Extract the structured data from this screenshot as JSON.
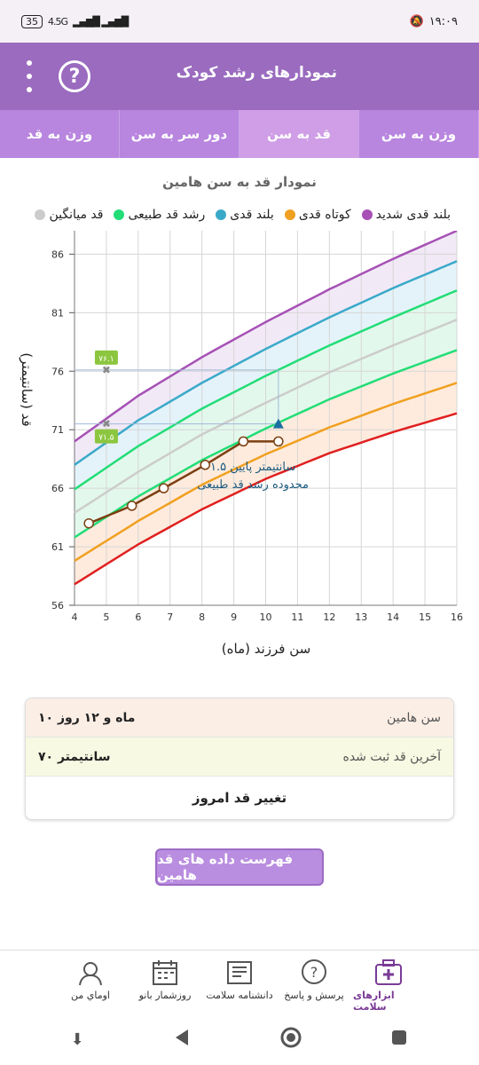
{
  "status": {
    "battery": "35",
    "network": "4.5G",
    "time": "۱۹:۰۹"
  },
  "appbar": {
    "title": "نمودارهای رشد کودک",
    "help_label": "?"
  },
  "tabs": [
    {
      "label": "وزن به سن",
      "active": false
    },
    {
      "label": "قد به سن",
      "active": true
    },
    {
      "label": "دور سر به سن",
      "active": false
    },
    {
      "label": "وزن به قد",
      "active": false
    }
  ],
  "chart_title": "نمودار قد به سن هامین",
  "legend": [
    {
      "label": "بلند قدی شدید",
      "color": "#a651b5"
    },
    {
      "label": "کوتاه قدی",
      "color": "#f0a020"
    },
    {
      "label": "بلند قدی",
      "color": "#3aa9c9"
    },
    {
      "label": "رشد قد طبیعی",
      "color": "#22dd77"
    },
    {
      "label": "قد میانگین",
      "color": "#cccccc"
    }
  ],
  "chart_data": {
    "type": "line",
    "xlabel": "سن فرزند (ماه)",
    "ylabel": "قد (سانتیمتر)",
    "xlim": [
      4,
      16
    ],
    "ylim": [
      56,
      88
    ],
    "xticks": [
      4,
      5,
      6,
      7,
      8,
      9,
      10,
      11,
      12,
      13,
      14,
      15,
      16
    ],
    "yticks": [
      56,
      61,
      66,
      71,
      76,
      81,
      86
    ],
    "curves": [
      {
        "name": "severe-short",
        "color": "#e02020",
        "points": [
          [
            4,
            57.8
          ],
          [
            6,
            61.2
          ],
          [
            8,
            64.2
          ],
          [
            10,
            66.8
          ],
          [
            12,
            69.0
          ],
          [
            14,
            70.8
          ],
          [
            16,
            72.4
          ]
        ]
      },
      {
        "name": "short",
        "color": "#f0a020",
        "points": [
          [
            4,
            59.8
          ],
          [
            6,
            63.2
          ],
          [
            8,
            66.3
          ],
          [
            10,
            68.9
          ],
          [
            12,
            71.2
          ],
          [
            14,
            73.2
          ],
          [
            16,
            75.0
          ]
        ]
      },
      {
        "name": "normal-low",
        "color": "#22dd77",
        "points": [
          [
            4,
            61.8
          ],
          [
            6,
            65.3
          ],
          [
            8,
            68.4
          ],
          [
            10,
            71.1
          ],
          [
            12,
            73.6
          ],
          [
            14,
            75.8
          ],
          [
            16,
            77.8
          ]
        ]
      },
      {
        "name": "mean",
        "color": "#cccccc",
        "points": [
          [
            4,
            63.9
          ],
          [
            6,
            67.4
          ],
          [
            8,
            70.6
          ],
          [
            10,
            73.3
          ],
          [
            12,
            75.9
          ],
          [
            14,
            78.2
          ],
          [
            16,
            80.4
          ]
        ]
      },
      {
        "name": "normal-high",
        "color": "#22dd77",
        "points": [
          [
            4,
            65.9
          ],
          [
            6,
            69.6
          ],
          [
            8,
            72.8
          ],
          [
            10,
            75.6
          ],
          [
            12,
            78.2
          ],
          [
            14,
            80.6
          ],
          [
            16,
            82.9
          ]
        ]
      },
      {
        "name": "tall",
        "color": "#3aa9c9",
        "points": [
          [
            4,
            68.0
          ],
          [
            6,
            71.8
          ],
          [
            8,
            75.0
          ],
          [
            10,
            77.9
          ],
          [
            12,
            80.6
          ],
          [
            14,
            83.1
          ],
          [
            16,
            85.4
          ]
        ]
      },
      {
        "name": "very-tall",
        "color": "#a651b5",
        "points": [
          [
            4,
            70.0
          ],
          [
            6,
            73.9
          ],
          [
            8,
            77.2
          ],
          [
            10,
            80.2
          ],
          [
            12,
            83.0
          ],
          [
            14,
            85.6
          ],
          [
            16,
            88.0
          ]
        ]
      }
    ],
    "child_series": [
      [
        4.45,
        63.0
      ],
      [
        5.8,
        64.5
      ],
      [
        6.8,
        66.0
      ],
      [
        8.1,
        68.0
      ],
      [
        9.3,
        70.0
      ],
      [
        10.4,
        70.0
      ]
    ],
    "markers": {
      "upper": {
        "x": 5,
        "y": 76.1,
        "label": "۷۶.۱"
      },
      "lower": {
        "x": 5,
        "y": 71.5,
        "label": "۷۱.۵"
      },
      "target": {
        "x": 10.4,
        "y": 71.5
      }
    },
    "annotation": [
      "۱.۵ سانتیمتر پایین",
      "محدوده رشد قد طبیعی"
    ]
  },
  "info": {
    "age_label": "سن هامین",
    "age_value": "۱۰ ماه و ۱۲ روز",
    "last_height_label": "آخرین قد ثبت شده",
    "last_height_value": "۷۰ سانتیمتر",
    "change_label": "تغییر قد امروز"
  },
  "list_button": "فهرست داده های قد هامین",
  "bottom_nav": [
    {
      "label": "ابزارهای سلامت",
      "icon": "medical-kit-icon",
      "active": true
    },
    {
      "label": "پرسش و پاسخ",
      "icon": "question-bubble-icon",
      "active": false
    },
    {
      "label": "دانشنامه سلامت",
      "icon": "newspaper-icon",
      "active": false
    },
    {
      "label": "روزشمار بانو",
      "icon": "calendar-icon",
      "active": false
    },
    {
      "label": "اوماي من",
      "icon": "woman-avatar-icon",
      "active": false
    }
  ]
}
